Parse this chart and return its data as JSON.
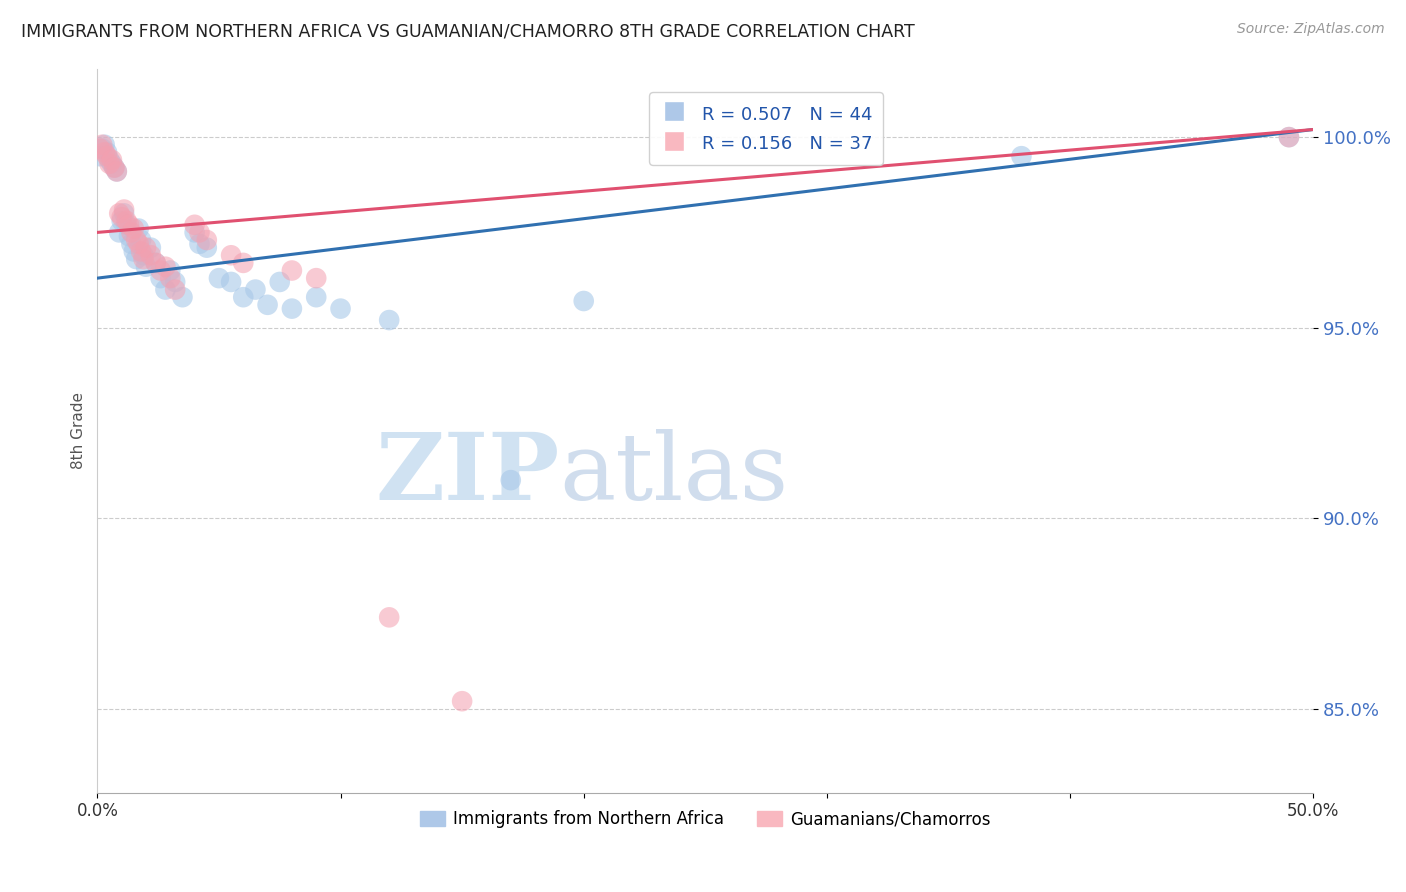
{
  "title": "IMMIGRANTS FROM NORTHERN AFRICA VS GUAMANIAN/CHAMORRO 8TH GRADE CORRELATION CHART",
  "source": "Source: ZipAtlas.com",
  "ylabel": "8th Grade",
  "ytick_labels": [
    "85.0%",
    "90.0%",
    "95.0%",
    "100.0%"
  ],
  "ytick_values": [
    0.85,
    0.9,
    0.95,
    1.0
  ],
  "xlim": [
    0.0,
    0.5
  ],
  "ylim": [
    0.828,
    1.018
  ],
  "blue_color": "#a8c8e8",
  "pink_color": "#f4a0b0",
  "blue_line_color": "#3070b0",
  "pink_line_color": "#e05070",
  "blue_scatter": [
    [
      0.001,
      0.995
    ],
    [
      0.002,
      0.997
    ],
    [
      0.003,
      0.998
    ],
    [
      0.004,
      0.996
    ],
    [
      0.005,
      0.994
    ],
    [
      0.006,
      0.993
    ],
    [
      0.007,
      0.992
    ],
    [
      0.008,
      0.991
    ],
    [
      0.009,
      0.975
    ],
    [
      0.01,
      0.978
    ],
    [
      0.011,
      0.98
    ],
    [
      0.012,
      0.977
    ],
    [
      0.013,
      0.974
    ],
    [
      0.014,
      0.972
    ],
    [
      0.015,
      0.97
    ],
    [
      0.016,
      0.968
    ],
    [
      0.017,
      0.976
    ],
    [
      0.018,
      0.973
    ],
    [
      0.019,
      0.969
    ],
    [
      0.02,
      0.966
    ],
    [
      0.022,
      0.971
    ],
    [
      0.024,
      0.967
    ],
    [
      0.026,
      0.963
    ],
    [
      0.028,
      0.96
    ],
    [
      0.03,
      0.965
    ],
    [
      0.032,
      0.962
    ],
    [
      0.035,
      0.958
    ],
    [
      0.04,
      0.975
    ],
    [
      0.042,
      0.972
    ],
    [
      0.045,
      0.971
    ],
    [
      0.05,
      0.963
    ],
    [
      0.055,
      0.962
    ],
    [
      0.06,
      0.958
    ],
    [
      0.065,
      0.96
    ],
    [
      0.07,
      0.956
    ],
    [
      0.075,
      0.962
    ],
    [
      0.08,
      0.955
    ],
    [
      0.09,
      0.958
    ],
    [
      0.1,
      0.955
    ],
    [
      0.12,
      0.952
    ],
    [
      0.17,
      0.91
    ],
    [
      0.2,
      0.957
    ],
    [
      0.38,
      0.995
    ],
    [
      0.49,
      1.0
    ]
  ],
  "pink_scatter": [
    [
      0.001,
      0.997
    ],
    [
      0.002,
      0.998
    ],
    [
      0.003,
      0.996
    ],
    [
      0.004,
      0.995
    ],
    [
      0.005,
      0.993
    ],
    [
      0.006,
      0.994
    ],
    [
      0.007,
      0.992
    ],
    [
      0.008,
      0.991
    ],
    [
      0.009,
      0.98
    ],
    [
      0.01,
      0.979
    ],
    [
      0.011,
      0.981
    ],
    [
      0.012,
      0.978
    ],
    [
      0.013,
      0.977
    ],
    [
      0.014,
      0.975
    ],
    [
      0.015,
      0.976
    ],
    [
      0.016,
      0.973
    ],
    [
      0.017,
      0.972
    ],
    [
      0.018,
      0.97
    ],
    [
      0.019,
      0.968
    ],
    [
      0.02,
      0.971
    ],
    [
      0.022,
      0.969
    ],
    [
      0.024,
      0.967
    ],
    [
      0.026,
      0.965
    ],
    [
      0.028,
      0.966
    ],
    [
      0.03,
      0.963
    ],
    [
      0.032,
      0.96
    ],
    [
      0.04,
      0.977
    ],
    [
      0.042,
      0.975
    ],
    [
      0.045,
      0.973
    ],
    [
      0.055,
      0.969
    ],
    [
      0.06,
      0.967
    ],
    [
      0.08,
      0.965
    ],
    [
      0.09,
      0.963
    ],
    [
      0.12,
      0.874
    ],
    [
      0.15,
      0.852
    ],
    [
      0.49,
      1.0
    ]
  ],
  "blue_line": [
    [
      0.0,
      0.963
    ],
    [
      0.5,
      1.002
    ]
  ],
  "pink_line": [
    [
      0.0,
      0.975
    ],
    [
      0.5,
      1.002
    ]
  ],
  "watermark_zip": "ZIP",
  "watermark_atlas": "atlas",
  "background_color": "#ffffff",
  "grid_color": "#cccccc"
}
